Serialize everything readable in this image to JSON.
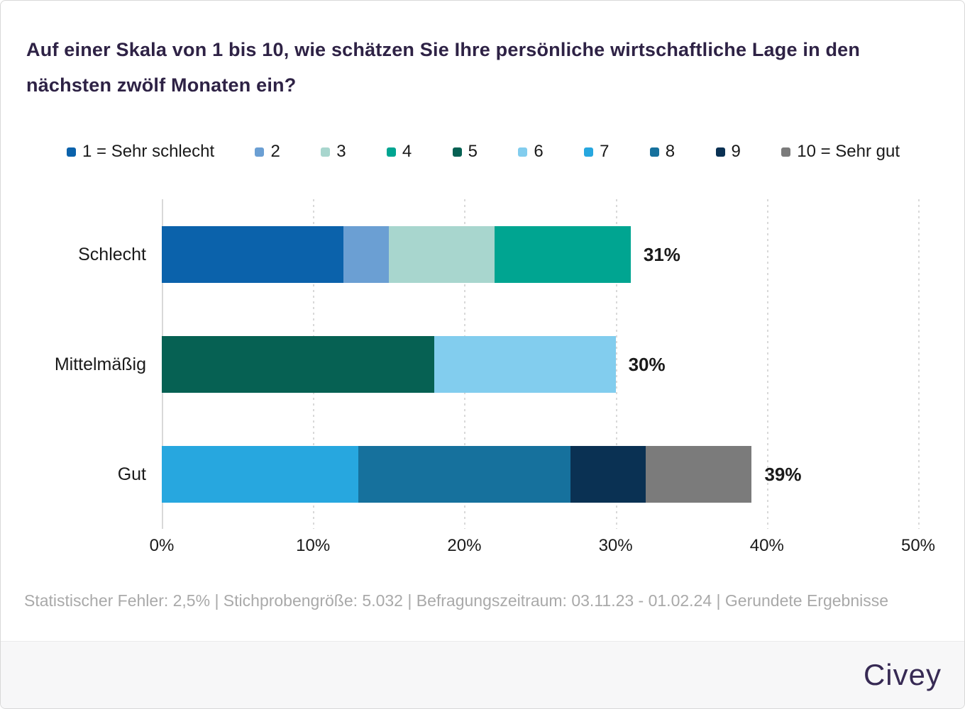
{
  "title": "Auf einer Skala von 1 bis 10, wie schätzen Sie Ihre persönliche wirtschaftliche Lage in den nächsten zwölf Monaten ein?",
  "legend": [
    {
      "scale": "1",
      "label": "1 = Sehr schlecht",
      "color": "#0B62AB"
    },
    {
      "scale": "2",
      "label": "2",
      "color": "#6B9FD3"
    },
    {
      "scale": "3",
      "label": "3",
      "color": "#A8D6CE"
    },
    {
      "scale": "4",
      "label": "4",
      "color": "#00A591"
    },
    {
      "scale": "5",
      "label": "5",
      "color": "#066153"
    },
    {
      "scale": "6",
      "label": "6",
      "color": "#82CDEE"
    },
    {
      "scale": "7",
      "label": "7",
      "color": "#27A7DF"
    },
    {
      "scale": "8",
      "label": "8",
      "color": "#16719D"
    },
    {
      "scale": "9",
      "label": "9",
      "color": "#0A3153"
    },
    {
      "scale": "10",
      "label": "10 = Sehr gut",
      "color": "#7B7B7B"
    }
  ],
  "chart_data": {
    "type": "bar",
    "stacked": true,
    "orientation": "horizontal",
    "unit": "%",
    "xlim": [
      0,
      50
    ],
    "x_ticks": [
      "0%",
      "10%",
      "20%",
      "30%",
      "40%",
      "50%"
    ],
    "grid": "vertical-dotted",
    "legend_position": "top",
    "categories": [
      "Schlecht",
      "Mittelmäßig",
      "Gut"
    ],
    "rows": [
      {
        "category": "Schlecht",
        "total": 31,
        "total_label": "31%",
        "segments": [
          {
            "scale": "1",
            "value": 12
          },
          {
            "scale": "2",
            "value": 3
          },
          {
            "scale": "3",
            "value": 7
          },
          {
            "scale": "4",
            "value": 9
          }
        ]
      },
      {
        "category": "Mittelmäßig",
        "total": 30,
        "total_label": "30%",
        "segments": [
          {
            "scale": "5",
            "value": 18
          },
          {
            "scale": "6",
            "value": 12
          }
        ]
      },
      {
        "category": "Gut",
        "total": 39,
        "total_label": "39%",
        "segments": [
          {
            "scale": "7",
            "value": 13
          },
          {
            "scale": "8",
            "value": 14
          },
          {
            "scale": "9",
            "value": 5
          },
          {
            "scale": "10",
            "value": 7
          }
        ]
      }
    ]
  },
  "footer": {
    "source": "Statistischer Fehler: 2,5% | Stichprobengröße: 5.032 | Befragungszeitraum: 03.11.23 - 01.02.24 | Gerundete Ergebnisse"
  },
  "brand": {
    "logo": "Civey"
  },
  "colors": {
    "title_text": "#2E2245",
    "body_text": "#1A1A1A",
    "footer_text": "#A9A9A9",
    "grid": "#D9D9D9",
    "brand_bar_bg": "#F7F7F8",
    "logo_text": "#372A54"
  }
}
